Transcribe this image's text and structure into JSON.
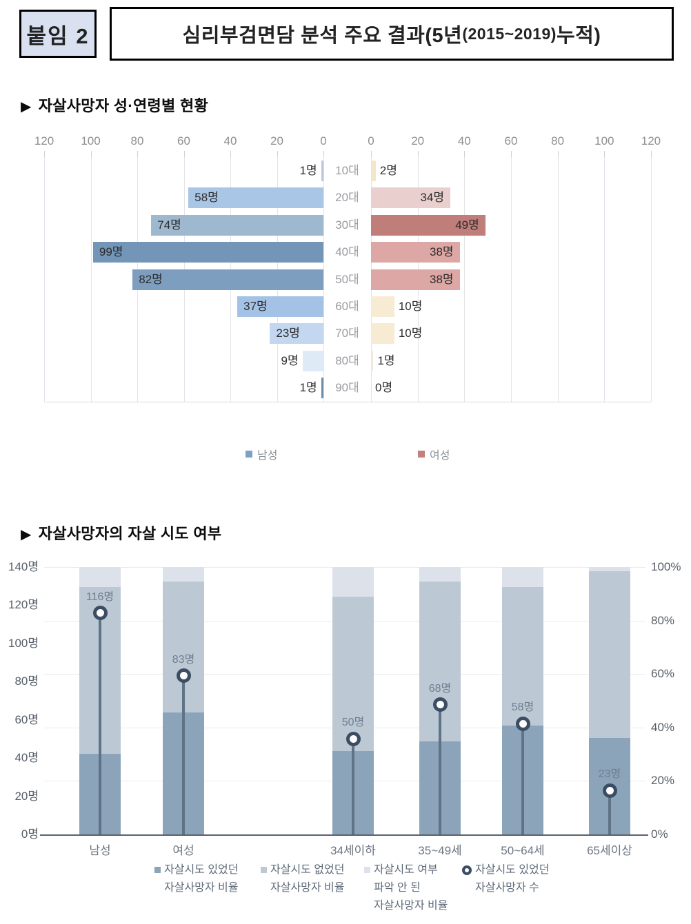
{
  "header": {
    "tag": "붙임 2",
    "title_part1": "심리부검면담 분석 주요 결과(5년",
    "title_part2": "(2015~2019)",
    "title_part3": " 누적)"
  },
  "sections": {
    "s1": {
      "marker": "▶",
      "title": "자살사망자 성·연령별 현황"
    },
    "s2": {
      "marker": "▶",
      "title": "자살사망자의 자살 시도 여부"
    }
  },
  "chart_data": [
    {
      "type": "bar",
      "variant": "population_pyramid",
      "title": "자살사망자 성·연령별 현황",
      "categories": [
        "10대",
        "20대",
        "30대",
        "40대",
        "50대",
        "60대",
        "70대",
        "80대",
        "90대"
      ],
      "axis": {
        "ticks": [
          120,
          100,
          80,
          60,
          40,
          20,
          0
        ],
        "max": 120,
        "grid": true,
        "unit": "명"
      },
      "series": [
        {
          "name": "남성",
          "side": "left",
          "values": [
            1,
            58,
            74,
            99,
            82,
            37,
            23,
            9,
            1
          ],
          "labels": [
            "1명",
            "58명",
            "74명",
            "99명",
            "82명",
            "37명",
            "23명",
            "9명",
            "1명"
          ],
          "bar_colors": [
            "#b9c8d8",
            "#a9c6e7",
            "#9db8cf",
            "#7396b8",
            "#7e9ec0",
            "#a4c2e5",
            "#c3d8f0",
            "#dfeaf7",
            "#6d89a8"
          ],
          "legend_color": "#7da1c4"
        },
        {
          "name": "여성",
          "side": "right",
          "values": [
            2,
            34,
            49,
            38,
            38,
            10,
            10,
            1,
            0
          ],
          "labels": [
            "2명",
            "34명",
            "49명",
            "38명",
            "38명",
            "10명",
            "10명",
            "1명",
            "0명"
          ],
          "bar_colors": [
            "#f4e6c9",
            "#e9cfcd",
            "#c07e7b",
            "#dca7a4",
            "#dca7a4",
            "#f7ebd3",
            "#f7ebd3",
            "#f2e8dc",
            "#ffffff"
          ],
          "legend_color": "#c47f7f"
        }
      ],
      "legend": [
        {
          "label": "남성",
          "color": "#7da1c4"
        },
        {
          "label": "여성",
          "color": "#c47f7f"
        }
      ]
    },
    {
      "type": "bar",
      "variant": "stacked_percent_with_lollipop",
      "title": "자살사망자의 자살 시도 여부",
      "categories": [
        "남성",
        "여성",
        "34세이하",
        "35~49세",
        "50~64세",
        "65세이상"
      ],
      "left_axis": {
        "ticks": [
          "0명",
          "20명",
          "40명",
          "60명",
          "80명",
          "100명",
          "120명",
          "140명"
        ],
        "max": 140,
        "unit": "명"
      },
      "right_axis": {
        "ticks": [
          "0%",
          "20%",
          "40%",
          "60%",
          "80%",
          "100%"
        ],
        "max": 100,
        "unit": "%"
      },
      "series": [
        {
          "name": "자살시도 있었던 자살사망자 비율",
          "values": [
            30.2,
            45.6,
            31.3,
            34.7,
            40.8,
            36.0
          ],
          "color": "#8ba4ba"
        },
        {
          "name": "자살시도 없었던 자살사망자 비율",
          "values": [
            62.2,
            49.1,
            57.7,
            60.0,
            51.8,
            62.5
          ],
          "color": "#bcc9d5"
        },
        {
          "name": "자살시도 여부 파악 안 된 자살사망자 비율",
          "values": [
            7.6,
            5.3,
            11.0,
            5.3,
            7.4,
            1.5
          ],
          "color": "#dde2ea"
        }
      ],
      "lollipop": {
        "name": "자살시도 있었던 자살사망자 수",
        "values": [
          116,
          83,
          50,
          68,
          58,
          23
        ],
        "labels": [
          "116명",
          "83명",
          "50명",
          "68명",
          "58명",
          "23명"
        ],
        "stem_color": "#5f7386",
        "ring_color": "#3b4d63"
      }
    }
  ],
  "legend1": {
    "items": [
      {
        "label": "남성",
        "color": "#7da1c4"
      },
      {
        "label": "여성",
        "color": "#c47f7f"
      }
    ]
  },
  "legend2": {
    "items": [
      {
        "marker": "square",
        "color": "#8ba4ba",
        "lines": [
          "자살시도 있었던",
          "자살사망자 비율"
        ]
      },
      {
        "marker": "square",
        "color": "#bcc9d5",
        "lines": [
          "자살시도 없었던",
          "자살사망자 비율"
        ]
      },
      {
        "marker": "square",
        "color": "#dde2ea",
        "lines": [
          "자살시도 여부",
          "파악 안 된",
          "자살사망자 비율"
        ]
      },
      {
        "marker": "ring",
        "color": "#3b4d63",
        "lines": [
          "자살시도 있었던",
          "자살사망자 수"
        ]
      }
    ]
  }
}
